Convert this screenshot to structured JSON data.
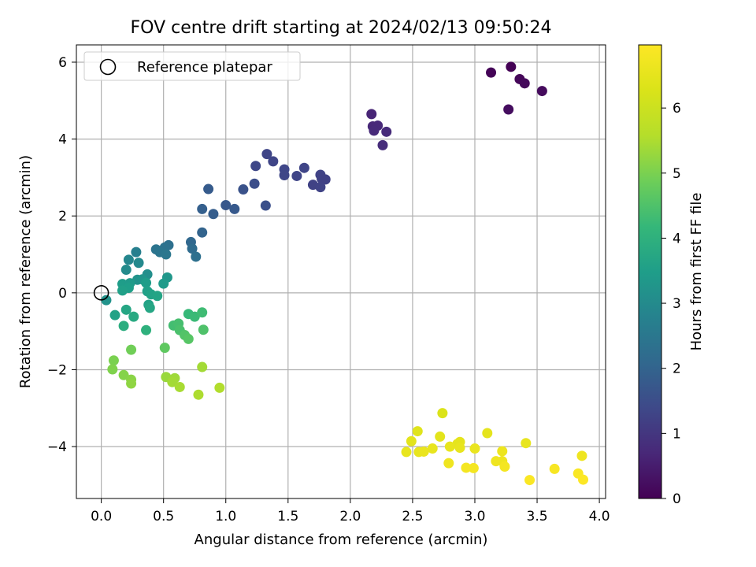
{
  "chart_data": {
    "type": "scatter",
    "title": "FOV centre drift starting at 2024/02/13 09:50:24",
    "xlabel": "Angular distance from reference (arcmin)",
    "ylabel": "Rotation from reference (arcmin)",
    "xlim": [
      -0.2,
      4.05
    ],
    "ylim": [
      -5.35,
      6.45
    ],
    "xticks": [
      0.0,
      0.5,
      1.0,
      1.5,
      2.0,
      2.5,
      3.0,
      3.5,
      4.0
    ],
    "xtick_labels": [
      "0.0",
      "0.5",
      "1.0",
      "1.5",
      "2.0",
      "2.5",
      "3.0",
      "3.5",
      "4.0"
    ],
    "yticks": [
      -4,
      -2,
      0,
      2,
      4,
      6
    ],
    "ytick_labels": [
      "−4",
      "−2",
      "0",
      "2",
      "4",
      "6"
    ],
    "grid": true,
    "legend": {
      "placement": "top-left",
      "label": "Reference platepar"
    },
    "reference_point": {
      "x": 0,
      "y": 0
    },
    "colorbar": {
      "label": "Hours from first FF file",
      "colormap": "viridis",
      "range": [
        0,
        6.97
      ],
      "ticks": [
        0,
        1,
        2,
        3,
        4,
        5,
        6
      ],
      "tick_labels": [
        "0",
        "1",
        "2",
        "3",
        "4",
        "5",
        "6"
      ]
    },
    "points": [
      {
        "x": 3.29,
        "y": 5.88,
        "c": 0.02
      },
      {
        "x": 3.13,
        "y": 5.73,
        "c": 0.06
      },
      {
        "x": 3.36,
        "y": 5.56,
        "c": 0.1
      },
      {
        "x": 3.4,
        "y": 5.45,
        "c": 0.14
      },
      {
        "x": 3.54,
        "y": 5.25,
        "c": 0.18
      },
      {
        "x": 3.27,
        "y": 4.77,
        "c": 0.22
      },
      {
        "x": 2.17,
        "y": 4.65,
        "c": 0.65
      },
      {
        "x": 2.18,
        "y": 4.33,
        "c": 0.7
      },
      {
        "x": 2.22,
        "y": 4.35,
        "c": 0.72
      },
      {
        "x": 2.19,
        "y": 4.22,
        "c": 0.74
      },
      {
        "x": 2.29,
        "y": 4.19,
        "c": 0.76
      },
      {
        "x": 2.26,
        "y": 3.84,
        "c": 0.8
      },
      {
        "x": 1.33,
        "y": 3.61,
        "c": 1.3
      },
      {
        "x": 1.38,
        "y": 3.42,
        "c": 1.32
      },
      {
        "x": 1.24,
        "y": 3.3,
        "c": 1.36
      },
      {
        "x": 1.47,
        "y": 3.21,
        "c": 1.34
      },
      {
        "x": 1.63,
        "y": 3.25,
        "c": 1.3
      },
      {
        "x": 1.47,
        "y": 3.06,
        "c": 1.33
      },
      {
        "x": 1.57,
        "y": 3.04,
        "c": 1.31
      },
      {
        "x": 1.76,
        "y": 3.07,
        "c": 1.26
      },
      {
        "x": 1.77,
        "y": 2.97,
        "c": 1.24
      },
      {
        "x": 1.8,
        "y": 2.95,
        "c": 1.22
      },
      {
        "x": 1.7,
        "y": 2.81,
        "c": 1.24
      },
      {
        "x": 1.76,
        "y": 2.75,
        "c": 1.26
      },
      {
        "x": 1.23,
        "y": 2.84,
        "c": 1.5
      },
      {
        "x": 1.14,
        "y": 2.69,
        "c": 1.6
      },
      {
        "x": 0.86,
        "y": 2.7,
        "c": 1.8
      },
      {
        "x": 1.32,
        "y": 2.27,
        "c": 1.55
      },
      {
        "x": 1.0,
        "y": 2.28,
        "c": 1.7
      },
      {
        "x": 1.07,
        "y": 2.18,
        "c": 1.75
      },
      {
        "x": 0.81,
        "y": 2.18,
        "c": 1.9
      },
      {
        "x": 0.9,
        "y": 2.05,
        "c": 1.85
      },
      {
        "x": 0.81,
        "y": 1.57,
        "c": 2.0
      },
      {
        "x": 0.54,
        "y": 1.24,
        "c": 2.3
      },
      {
        "x": 0.51,
        "y": 1.18,
        "c": 2.35
      },
      {
        "x": 0.44,
        "y": 1.13,
        "c": 2.4
      },
      {
        "x": 0.47,
        "y": 1.06,
        "c": 2.45
      },
      {
        "x": 0.52,
        "y": 1.0,
        "c": 2.5
      },
      {
        "x": 0.72,
        "y": 1.32,
        "c": 2.1
      },
      {
        "x": 0.73,
        "y": 1.15,
        "c": 2.2
      },
      {
        "x": 0.76,
        "y": 0.94,
        "c": 2.3
      },
      {
        "x": 0.28,
        "y": 1.06,
        "c": 2.7
      },
      {
        "x": 0.22,
        "y": 0.86,
        "c": 2.9
      },
      {
        "x": 0.3,
        "y": 0.78,
        "c": 2.95
      },
      {
        "x": 0.2,
        "y": 0.6,
        "c": 3.0
      },
      {
        "x": 0.37,
        "y": 0.48,
        "c": 3.1
      },
      {
        "x": 0.29,
        "y": 0.34,
        "c": 3.2
      },
      {
        "x": 0.33,
        "y": 0.35,
        "c": 3.25
      },
      {
        "x": 0.53,
        "y": 0.4,
        "c": 3.3
      },
      {
        "x": 0.5,
        "y": 0.24,
        "c": 3.4
      },
      {
        "x": 0.17,
        "y": 0.23,
        "c": 3.45
      },
      {
        "x": 0.23,
        "y": 0.25,
        "c": 3.4
      },
      {
        "x": 0.36,
        "y": 0.26,
        "c": 3.45
      },
      {
        "x": 0.22,
        "y": 0.13,
        "c": 3.5
      },
      {
        "x": 0.17,
        "y": 0.06,
        "c": 3.55
      },
      {
        "x": 0.37,
        "y": 0.04,
        "c": 3.55
      },
      {
        "x": 0.4,
        "y": -0.04,
        "c": 3.6
      },
      {
        "x": 0.45,
        "y": -0.08,
        "c": 3.65
      },
      {
        "x": 0.04,
        "y": -0.19,
        "c": 3.2
      },
      {
        "x": 0.38,
        "y": -0.31,
        "c": 3.6
      },
      {
        "x": 0.39,
        "y": -0.39,
        "c": 3.7
      },
      {
        "x": 0.2,
        "y": -0.44,
        "c": 3.7
      },
      {
        "x": 0.11,
        "y": -0.58,
        "c": 3.6
      },
      {
        "x": 0.26,
        "y": -0.62,
        "c": 3.8
      },
      {
        "x": 0.18,
        "y": -0.86,
        "c": 3.9
      },
      {
        "x": 0.36,
        "y": -0.97,
        "c": 4.0
      },
      {
        "x": 0.7,
        "y": -0.55,
        "c": 4.2
      },
      {
        "x": 0.75,
        "y": -0.62,
        "c": 4.25
      },
      {
        "x": 0.81,
        "y": -0.51,
        "c": 4.3
      },
      {
        "x": 0.58,
        "y": -0.85,
        "c": 4.35
      },
      {
        "x": 0.62,
        "y": -0.8,
        "c": 4.4
      },
      {
        "x": 0.63,
        "y": -0.97,
        "c": 4.45
      },
      {
        "x": 0.82,
        "y": -0.96,
        "c": 4.5
      },
      {
        "x": 0.67,
        "y": -1.1,
        "c": 4.55
      },
      {
        "x": 0.7,
        "y": -1.2,
        "c": 4.6
      },
      {
        "x": 0.51,
        "y": -1.43,
        "c": 4.7
      },
      {
        "x": 0.24,
        "y": -1.48,
        "c": 4.9
      },
      {
        "x": 0.1,
        "y": -1.76,
        "c": 5.0
      },
      {
        "x": 0.09,
        "y": -1.99,
        "c": 5.05
      },
      {
        "x": 0.81,
        "y": -1.93,
        "c": 5.4
      },
      {
        "x": 0.18,
        "y": -2.14,
        "c": 5.1
      },
      {
        "x": 0.24,
        "y": -2.26,
        "c": 5.15
      },
      {
        "x": 0.24,
        "y": -2.36,
        "c": 5.2
      },
      {
        "x": 0.52,
        "y": -2.19,
        "c": 5.3
      },
      {
        "x": 0.59,
        "y": -2.22,
        "c": 5.35
      },
      {
        "x": 0.57,
        "y": -2.32,
        "c": 5.4
      },
      {
        "x": 0.63,
        "y": -2.45,
        "c": 5.45
      },
      {
        "x": 0.78,
        "y": -2.65,
        "c": 5.5
      },
      {
        "x": 0.95,
        "y": -2.47,
        "c": 5.55
      },
      {
        "x": 2.74,
        "y": -3.13,
        "c": 6.3
      },
      {
        "x": 2.54,
        "y": -3.6,
        "c": 6.4
      },
      {
        "x": 2.72,
        "y": -3.74,
        "c": 6.45
      },
      {
        "x": 3.1,
        "y": -3.65,
        "c": 6.5
      },
      {
        "x": 2.49,
        "y": -3.86,
        "c": 6.45
      },
      {
        "x": 2.88,
        "y": -3.88,
        "c": 6.5
      },
      {
        "x": 2.86,
        "y": -3.93,
        "c": 6.5
      },
      {
        "x": 3.41,
        "y": -3.91,
        "c": 6.55
      },
      {
        "x": 2.8,
        "y": -4.0,
        "c": 6.55
      },
      {
        "x": 2.66,
        "y": -4.05,
        "c": 6.55
      },
      {
        "x": 2.88,
        "y": -4.03,
        "c": 6.55
      },
      {
        "x": 3.0,
        "y": -4.05,
        "c": 6.6
      },
      {
        "x": 2.45,
        "y": -4.14,
        "c": 6.55
      },
      {
        "x": 2.55,
        "y": -4.14,
        "c": 6.55
      },
      {
        "x": 2.59,
        "y": -4.13,
        "c": 6.6
      },
      {
        "x": 3.22,
        "y": -4.12,
        "c": 6.65
      },
      {
        "x": 3.86,
        "y": -4.24,
        "c": 6.7
      },
      {
        "x": 3.17,
        "y": -4.38,
        "c": 6.7
      },
      {
        "x": 3.22,
        "y": -4.38,
        "c": 6.7
      },
      {
        "x": 2.79,
        "y": -4.43,
        "c": 6.7
      },
      {
        "x": 3.24,
        "y": -4.52,
        "c": 6.8
      },
      {
        "x": 2.93,
        "y": -4.55,
        "c": 6.8
      },
      {
        "x": 2.99,
        "y": -4.56,
        "c": 6.8
      },
      {
        "x": 3.64,
        "y": -4.58,
        "c": 6.85
      },
      {
        "x": 3.83,
        "y": -4.7,
        "c": 6.9
      },
      {
        "x": 3.44,
        "y": -4.87,
        "c": 6.92
      },
      {
        "x": 3.87,
        "y": -4.86,
        "c": 6.95
      }
    ]
  }
}
